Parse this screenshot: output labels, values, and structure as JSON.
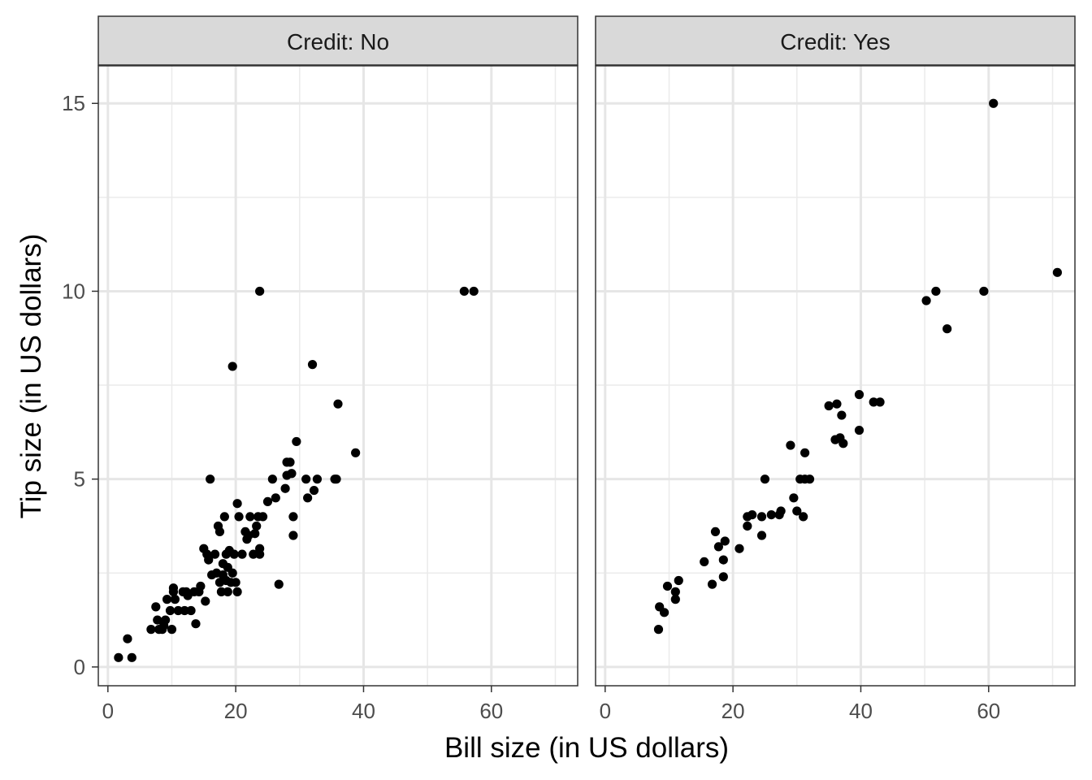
{
  "chart_data": {
    "type": "scatter",
    "xlabel": "Bill size (in US dollars)",
    "ylabel": "Tip size (in US dollars)",
    "xlim": [
      -1.5,
      73.5
    ],
    "ylim": [
      -0.5,
      16.0
    ],
    "x_ticks": [
      0,
      20,
      40,
      60
    ],
    "y_ticks": [
      0,
      5,
      10,
      15
    ],
    "grid": true,
    "theme": "black-and-white",
    "point_color": "#000000",
    "panels": [
      {
        "strip": "Credit: No",
        "points": [
          [
            1.66,
            0.25
          ],
          [
            3.07,
            0.75
          ],
          [
            3.75,
            0.25
          ],
          [
            6.75,
            1.0
          ],
          [
            7.5,
            1.6
          ],
          [
            7.75,
            1.25
          ],
          [
            8.0,
            1.0
          ],
          [
            8.5,
            1.0
          ],
          [
            8.75,
            1.1
          ],
          [
            9.0,
            1.25
          ],
          [
            9.25,
            1.8
          ],
          [
            9.75,
            1.5
          ],
          [
            10.0,
            1.0
          ],
          [
            10.25,
            2.0
          ],
          [
            10.25,
            2.1
          ],
          [
            10.5,
            1.8
          ],
          [
            11.0,
            1.5
          ],
          [
            11.75,
            2.0
          ],
          [
            12.0,
            1.5
          ],
          [
            12.25,
            2.0
          ],
          [
            12.5,
            1.9
          ],
          [
            13.0,
            1.5
          ],
          [
            13.5,
            2.0
          ],
          [
            13.75,
            1.15
          ],
          [
            14.25,
            2.0
          ],
          [
            14.5,
            2.15
          ],
          [
            15.0,
            3.15
          ],
          [
            15.25,
            1.75
          ],
          [
            15.5,
            3.0
          ],
          [
            15.75,
            2.85
          ],
          [
            16.0,
            5.0
          ],
          [
            16.25,
            2.45
          ],
          [
            16.75,
            3.0
          ],
          [
            17.0,
            2.5
          ],
          [
            17.25,
            3.75
          ],
          [
            17.5,
            3.6
          ],
          [
            17.5,
            2.25
          ],
          [
            17.75,
            2.0
          ],
          [
            18.0,
            2.75
          ],
          [
            18.0,
            2.45
          ],
          [
            18.25,
            4.0
          ],
          [
            18.5,
            3.0
          ],
          [
            18.5,
            2.3
          ],
          [
            18.75,
            2.0
          ],
          [
            18.75,
            2.65
          ],
          [
            19.0,
            3.1
          ],
          [
            19.25,
            2.25
          ],
          [
            19.5,
            2.5
          ],
          [
            19.5,
            8.0
          ],
          [
            19.75,
            3.0
          ],
          [
            20.0,
            2.25
          ],
          [
            20.25,
            2.0
          ],
          [
            20.25,
            4.35
          ],
          [
            20.5,
            4.0
          ],
          [
            21.0,
            3.0
          ],
          [
            21.5,
            3.6
          ],
          [
            21.75,
            3.4
          ],
          [
            22.0,
            3.5
          ],
          [
            22.25,
            4.0
          ],
          [
            22.75,
            3.0
          ],
          [
            23.0,
            3.55
          ],
          [
            23.25,
            3.75
          ],
          [
            23.5,
            4.0
          ],
          [
            23.75,
            3.15
          ],
          [
            23.75,
            3.0
          ],
          [
            23.75,
            10.0
          ],
          [
            24.25,
            4.0
          ],
          [
            25.0,
            4.4
          ],
          [
            25.75,
            5.0
          ],
          [
            26.25,
            4.5
          ],
          [
            26.75,
            2.2
          ],
          [
            27.75,
            4.75
          ],
          [
            28.0,
            5.45
          ],
          [
            28.0,
            5.1
          ],
          [
            28.5,
            5.45
          ],
          [
            28.75,
            5.15
          ],
          [
            29.0,
            4.0
          ],
          [
            29.0,
            3.5
          ],
          [
            29.5,
            6.0
          ],
          [
            31.0,
            5.0
          ],
          [
            31.25,
            4.5
          ],
          [
            32.0,
            8.05
          ],
          [
            32.25,
            4.7
          ],
          [
            32.75,
            5.0
          ],
          [
            35.5,
            5.0
          ],
          [
            35.75,
            5.0
          ],
          [
            36.0,
            7.0
          ],
          [
            38.75,
            5.7
          ],
          [
            55.75,
            10.0
          ],
          [
            57.25,
            10.0
          ]
        ]
      },
      {
        "strip": "Credit: Yes",
        "points": [
          [
            8.35,
            1.0
          ],
          [
            8.5,
            1.6
          ],
          [
            9.25,
            1.45
          ],
          [
            9.75,
            2.15
          ],
          [
            11.0,
            2.0
          ],
          [
            11.0,
            1.8
          ],
          [
            11.5,
            2.3
          ],
          [
            15.5,
            2.8
          ],
          [
            16.75,
            2.2
          ],
          [
            17.25,
            3.6
          ],
          [
            17.75,
            3.2
          ],
          [
            18.5,
            2.4
          ],
          [
            18.5,
            2.85
          ],
          [
            18.75,
            3.35
          ],
          [
            21.0,
            3.15
          ],
          [
            22.25,
            3.75
          ],
          [
            22.25,
            4.0
          ],
          [
            23.0,
            4.05
          ],
          [
            24.5,
            4.0
          ],
          [
            24.5,
            3.5
          ],
          [
            25.0,
            5.0
          ],
          [
            26.0,
            4.05
          ],
          [
            27.25,
            4.05
          ],
          [
            27.5,
            4.15
          ],
          [
            29.0,
            5.9
          ],
          [
            29.5,
            4.5
          ],
          [
            30.0,
            4.15
          ],
          [
            30.5,
            5.0
          ],
          [
            31.0,
            4.0
          ],
          [
            31.25,
            5.7
          ],
          [
            31.25,
            5.0
          ],
          [
            32.0,
            5.0
          ],
          [
            35.0,
            6.95
          ],
          [
            36.0,
            6.05
          ],
          [
            36.25,
            7.0
          ],
          [
            36.75,
            6.1
          ],
          [
            37.0,
            6.7
          ],
          [
            37.25,
            5.95
          ],
          [
            39.75,
            6.3
          ],
          [
            39.75,
            7.25
          ],
          [
            42.0,
            7.05
          ],
          [
            43.0,
            7.05
          ],
          [
            50.25,
            9.75
          ],
          [
            51.75,
            10.0
          ],
          [
            53.5,
            9.0
          ],
          [
            59.25,
            10.0
          ],
          [
            60.75,
            15.0
          ],
          [
            70.75,
            10.5
          ]
        ]
      }
    ]
  }
}
